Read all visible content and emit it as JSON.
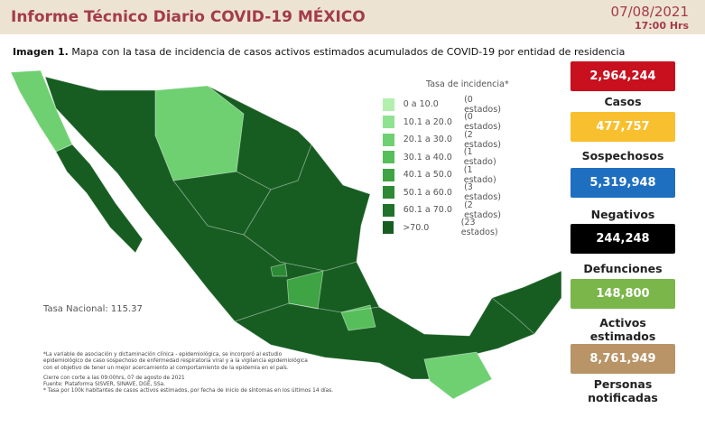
{
  "header": {
    "title": "Informe Técnico Diario COVID-19 MÉXICO",
    "date": "07/08/2021",
    "time": "17:00 Hrs"
  },
  "caption": {
    "label": "Imagen 1.",
    "text": "Mapa con la tasa de incidencia de casos activos estimados acumulados de COVID-19 por entidad de residencia"
  },
  "legend": {
    "title": "Tasa de incidencia*",
    "items": [
      {
        "range": "0 a 10.0",
        "count": "(0 estados)",
        "color": "#b3f0ad"
      },
      {
        "range": "10.1 a 20.0",
        "count": "(0 estados)",
        "color": "#8fe28f"
      },
      {
        "range": "20.1 a 30.0",
        "count": "(2 estados)",
        "color": "#6fd072"
      },
      {
        "range": "30.1 a 40.0",
        "count": "(1 estado)",
        "color": "#56be5a"
      },
      {
        "range": "40.1 a 50.0",
        "count": "(1 estado)",
        "color": "#3ea444"
      },
      {
        "range": "50.1 a 60.0",
        "count": "(3 estados)",
        "color": "#2c8a35"
      },
      {
        "range": "60.1 a 70.0",
        "count": "(2 estados)",
        "color": "#20722b"
      },
      {
        "range": ">70.0",
        "count": "(23 estados)",
        "color": "#175d22"
      }
    ]
  },
  "national_rate": "Tasa Nacional: 115.37",
  "notes": [
    "*La variable de asociación y dictaminación clínica - epidemiológica, se incorporó al estudio",
    "epidemiológico de caso sospechoso de enfermedad respiratoria viral y a la vigilancia epidemiológica",
    "con el objetivo de tener un mejor acercamiento al comportamiento de la epidemia en el país.",
    "Cierre con corte a las 09:00hrs, 07 de agosto de 2021",
    "Fuente: Plataforma SISVER, SINAVE, DGE, SSa.",
    "* Tasa por 100k habitantes de casos activos estimados, por fecha de inicio de síntomas en los últimos 14 días."
  ],
  "stats": [
    {
      "value": "2,964,244",
      "label": "Casos",
      "color": "#c8101e"
    },
    {
      "value": "477,757",
      "label": "Sospechosos",
      "color": "#f8c02f"
    },
    {
      "value": "5,319,948",
      "label": "Negativos",
      "color": "#1f6fc0"
    },
    {
      "value": "244,248",
      "label": "Defunciones",
      "color": "#000000"
    },
    {
      "value": "148,800",
      "label": "Activos estimados",
      "color": "#7ab649"
    },
    {
      "value": "8,761,949",
      "label": "Personas notificadas",
      "color": "#b89466"
    }
  ]
}
